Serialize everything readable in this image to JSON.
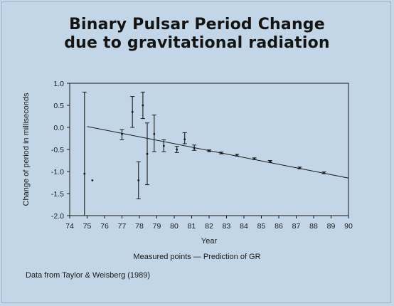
{
  "chart_data": {
    "type": "scatter",
    "title_line1": "Binary Pulsar Period Change",
    "title_line2": "due to gravitational radiation",
    "xlabel": "Year",
    "ylabel": "Change of period in milliseconds",
    "xlim": [
      74,
      90
    ],
    "ylim": [
      -2.0,
      1.0
    ],
    "x_ticks": [
      74,
      75,
      76,
      77,
      78,
      79,
      80,
      81,
      82,
      83,
      84,
      85,
      86,
      87,
      88,
      89,
      90
    ],
    "y_ticks": [
      {
        "v": 1.0,
        "label": "1.0"
      },
      {
        "v": 0.5,
        "label": "0.5"
      },
      {
        "v": 0.0,
        "label": "0.0"
      },
      {
        "v": -0.5,
        "label": "-0.5"
      },
      {
        "v": -1.0,
        "label": "-1.0"
      },
      {
        "v": -1.5,
        "label": "-1.5"
      },
      {
        "v": -2.0,
        "label": "-2.0"
      }
    ],
    "grid": false,
    "series": [
      {
        "name": "Measured points",
        "points": [
          {
            "x": 74.85,
            "y": -1.05,
            "ylo": -2.0,
            "yhi": 0.8
          },
          {
            "x": 75.3,
            "y": -1.2,
            "ylo": -1.2,
            "yhi": -1.2
          },
          {
            "x": 77.0,
            "y": -0.15,
            "ylo": -0.28,
            "yhi": -0.05
          },
          {
            "x": 77.6,
            "y": 0.35,
            "ylo": 0.0,
            "yhi": 0.7
          },
          {
            "x": 77.95,
            "y": -1.2,
            "ylo": -1.62,
            "yhi": -0.78
          },
          {
            "x": 78.2,
            "y": 0.5,
            "ylo": 0.2,
            "yhi": 0.8
          },
          {
            "x": 78.45,
            "y": -0.6,
            "ylo": -1.3,
            "yhi": 0.1
          },
          {
            "x": 78.85,
            "y": -0.15,
            "ylo": -0.55,
            "yhi": 0.28
          },
          {
            "x": 79.4,
            "y": -0.42,
            "ylo": -0.55,
            "yhi": -0.28
          },
          {
            "x": 80.15,
            "y": -0.5,
            "ylo": -0.57,
            "yhi": -0.43
          },
          {
            "x": 80.6,
            "y": -0.27,
            "ylo": -0.37,
            "yhi": -0.12
          },
          {
            "x": 81.15,
            "y": -0.47,
            "ylo": -0.52,
            "yhi": -0.4
          },
          {
            "x": 82.0,
            "y": -0.53,
            "ylo": -0.55,
            "yhi": -0.51
          },
          {
            "x": 82.7,
            "y": -0.58,
            "ylo": -0.6,
            "yhi": -0.56
          },
          {
            "x": 83.6,
            "y": -0.63,
            "ylo": -0.65,
            "yhi": -0.61
          },
          {
            "x": 84.6,
            "y": -0.71,
            "ylo": -0.73,
            "yhi": -0.69
          },
          {
            "x": 85.5,
            "y": -0.77,
            "ylo": -0.79,
            "yhi": -0.75
          },
          {
            "x": 87.2,
            "y": -0.92,
            "ylo": -0.94,
            "yhi": -0.9
          },
          {
            "x": 88.6,
            "y": -1.03,
            "ylo": -1.05,
            "yhi": -1.01
          }
        ]
      },
      {
        "name": "Prediction of GR",
        "line": [
          {
            "x": 75.0,
            "y": 0.02
          },
          {
            "x": 90.0,
            "y": -1.15
          }
        ]
      }
    ],
    "legend_text": "Measured points — Prediction of GR",
    "source_note": "Data from Taylor & Weisberg (1989)"
  }
}
